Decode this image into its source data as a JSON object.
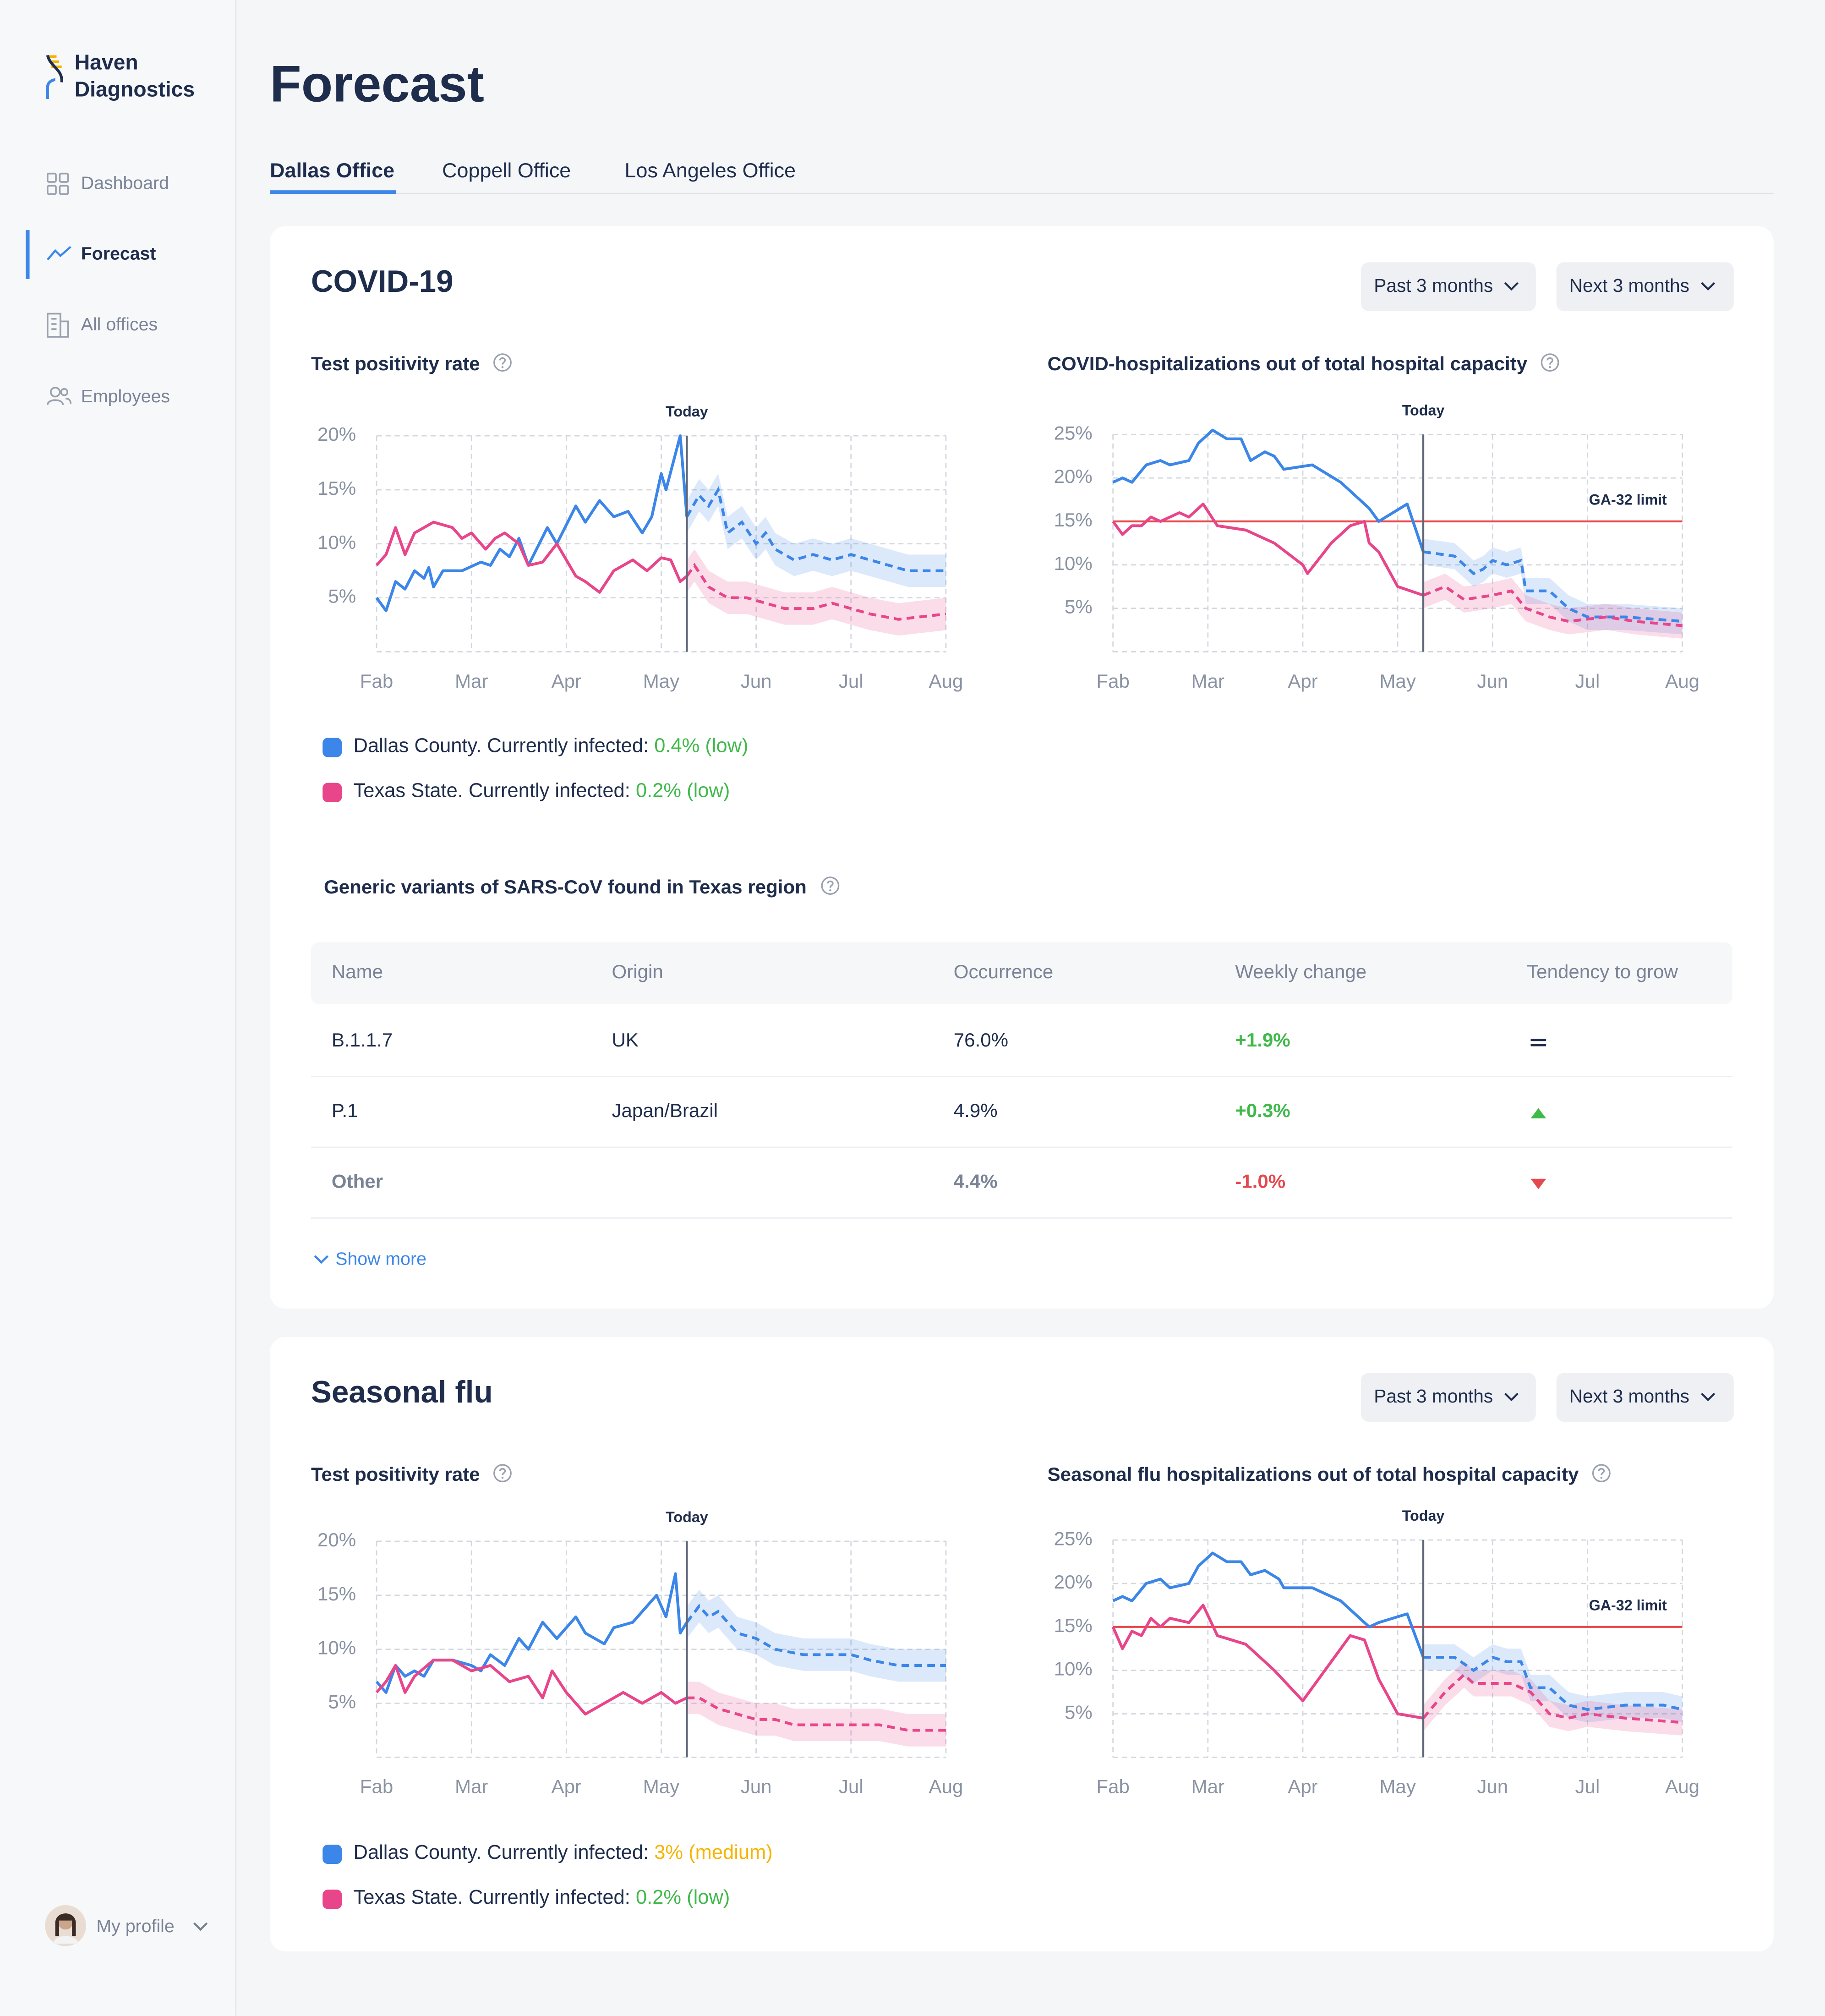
{
  "sidebar": {
    "brand": [
      "Haven",
      "Diagnostics"
    ],
    "nav": [
      "Dashboard",
      "Forecast",
      "All offices",
      "Employees"
    ],
    "active": 1,
    "profile": "My profile"
  },
  "header": {
    "title": "Forecast"
  },
  "tabs": {
    "items": [
      "Dallas Office",
      "Coppell Office",
      "Los Angeles Office"
    ],
    "active": 0
  },
  "sections": [
    {
      "title": "COVID-19",
      "filters": [
        "Past 3 months",
        "Next 3 months"
      ],
      "table": {
        "title": "Generic variants of SARS-CoV found in Texas region",
        "columns": [
          "Name",
          "Origin",
          "Occurrence",
          "Weekly change",
          "Tendency to grow"
        ],
        "rows": [
          [
            "B.1.1.7",
            "UK",
            "76.0%",
            "+1.9%"
          ],
          [
            "P.1",
            "Japan/Brazil",
            "4.9%",
            "+0.3%"
          ],
          [
            "Other",
            null,
            "4.4%",
            "-1.0%"
          ]
        ],
        "tendency": [
          "flat",
          "up",
          "down"
        ]
      },
      "show_more": "Show more"
    },
    {
      "title": "Seasonal flu",
      "filters": [
        "Past 3 months",
        "Next 3 months"
      ]
    }
  ],
  "chart_data": [
    {
      "type": "line",
      "title": "Test positivity rate",
      "xlim": [
        0,
        6
      ],
      "xticks": [
        {
          "value": 0,
          "label": "Fab"
        },
        {
          "value": 1,
          "label": "Mar"
        },
        {
          "value": 2,
          "label": "Apr"
        },
        {
          "value": 3,
          "label": "May"
        },
        {
          "value": 4,
          "label": "Jun"
        },
        {
          "value": 5,
          "label": "Jul"
        },
        {
          "value": 6,
          "label": "Aug"
        }
      ],
      "ylim": [
        0,
        20
      ],
      "yticks": [
        {
          "value": 5,
          "label": "5%"
        },
        {
          "value": 10,
          "label": "10%"
        },
        {
          "value": 15,
          "label": "15%"
        },
        {
          "value": 20,
          "label": "20%"
        }
      ],
      "grid": true,
      "today": {
        "label": "Today",
        "x": 3.27
      },
      "band": 1.5,
      "series": [
        {
          "name": "Dallas County. Currently infected:",
          "status": "0.4% (low)",
          "status_color": "#40b94b",
          "color": "#3b86e8",
          "x": [
            0,
            0.1,
            0.2,
            0.3,
            0.4,
            0.5,
            0.55,
            0.6,
            0.7,
            0.9,
            1.1,
            1.2,
            1.3,
            1.4,
            1.5,
            1.6,
            1.8,
            1.9,
            2.1,
            2.2,
            2.35,
            2.5,
            2.65,
            2.8,
            2.9,
            3.0,
            3.05,
            3.2,
            3.27
          ],
          "values": [
            5,
            3.8,
            6.5,
            5.8,
            7.5,
            6.8,
            7.8,
            6,
            7.5,
            7.5,
            8.3,
            8,
            9.5,
            8.8,
            10.5,
            8,
            11.5,
            10,
            13.5,
            12,
            14,
            12.5,
            13,
            11,
            12.5,
            16.5,
            15,
            20,
            12.5
          ],
          "forecast_x": [
            3.27,
            3.4,
            3.5,
            3.6,
            3.7,
            3.85,
            4.0,
            4.1,
            4.2,
            4.4,
            4.6,
            4.8,
            5.0,
            5.2,
            5.4,
            5.6,
            6.0
          ],
          "forecast": [
            12.5,
            14.5,
            13.5,
            15,
            11,
            12,
            10,
            11,
            9.5,
            8.5,
            9,
            8.5,
            9,
            8.5,
            8,
            7.5,
            7.5
          ]
        },
        {
          "name": "Texas State. Currently infected:",
          "status": "0.2% (low)",
          "status_color": "#40b94b",
          "color": "#e8458b",
          "x": [
            0,
            0.1,
            0.2,
            0.3,
            0.4,
            0.6,
            0.8,
            0.9,
            1.0,
            1.15,
            1.25,
            1.35,
            1.5,
            1.6,
            1.75,
            1.9,
            2.1,
            2.2,
            2.35,
            2.5,
            2.7,
            2.85,
            3.0,
            3.1,
            3.2,
            3.27
          ],
          "values": [
            8,
            9,
            11.5,
            9,
            11,
            12,
            11.5,
            10.5,
            11,
            9.5,
            10.5,
            11,
            10,
            8,
            8.3,
            10,
            7,
            6.5,
            5.5,
            7.5,
            8.5,
            7.5,
            8.7,
            8.5,
            6.5,
            7
          ],
          "forecast_x": [
            3.27,
            3.35,
            3.5,
            3.7,
            3.9,
            4.1,
            4.3,
            4.6,
            4.8,
            5.0,
            5.2,
            5.5,
            6.0
          ],
          "forecast": [
            7,
            8,
            6,
            5,
            5,
            4.5,
            4,
            4,
            4.5,
            4,
            3.5,
            3,
            3.5
          ]
        }
      ]
    },
    {
      "type": "line",
      "title": "COVID-hospitalizations out of total hospital capacity",
      "xlim": [
        0,
        6
      ],
      "xticks": [
        {
          "value": 0,
          "label": "Fab"
        },
        {
          "value": 1,
          "label": "Mar"
        },
        {
          "value": 2,
          "label": "Apr"
        },
        {
          "value": 3,
          "label": "May"
        },
        {
          "value": 4,
          "label": "Jun"
        },
        {
          "value": 5,
          "label": "Jul"
        },
        {
          "value": 6,
          "label": "Aug"
        }
      ],
      "ylim": [
        0,
        25
      ],
      "yticks": [
        {
          "value": 5,
          "label": "5%"
        },
        {
          "value": 10,
          "label": "10%"
        },
        {
          "value": 15,
          "label": "15%"
        },
        {
          "value": 20,
          "label": "20%"
        },
        {
          "value": 25,
          "label": "25%"
        }
      ],
      "grid": true,
      "today": {
        "label": "Today",
        "x": 3.27
      },
      "limit": {
        "label": "GA-32 limit",
        "value": 15,
        "color": "#e8474a"
      },
      "band": 1.5,
      "series": [
        {
          "color": "#3b86e8",
          "x": [
            0,
            0.1,
            0.2,
            0.35,
            0.5,
            0.6,
            0.8,
            0.9,
            1.05,
            1.2,
            1.35,
            1.45,
            1.6,
            1.7,
            1.8,
            2.1,
            2.4,
            2.7,
            2.8,
            3.1,
            3.27
          ],
          "values": [
            19.5,
            20,
            19.5,
            21.5,
            22,
            21.5,
            22,
            24,
            25.5,
            24.5,
            24.5,
            22,
            23,
            22.5,
            21,
            21.5,
            19.5,
            16.5,
            15,
            17,
            11.5
          ],
          "forecast_x": [
            3.27,
            3.6,
            3.8,
            3.9,
            4.0,
            4.15,
            4.3,
            4.35,
            4.6,
            4.8,
            5.0,
            5.4,
            6.0
          ],
          "forecast": [
            11.5,
            11,
            9,
            9.5,
            10.5,
            10,
            10.5,
            7,
            7,
            5,
            4,
            4,
            3.5
          ]
        },
        {
          "color": "#e8458b",
          "x": [
            0,
            0.1,
            0.2,
            0.3,
            0.4,
            0.5,
            0.7,
            0.8,
            0.95,
            1.1,
            1.4,
            1.7,
            2.0,
            2.05,
            2.3,
            2.5,
            2.65,
            2.7,
            2.8,
            3.0,
            3.27
          ],
          "values": [
            15,
            13.5,
            14.5,
            14.5,
            15.5,
            15,
            16,
            15.5,
            17,
            14.5,
            14,
            12.5,
            10,
            9,
            12.5,
            14.5,
            15,
            12.5,
            11.5,
            7.5,
            6.5
          ],
          "forecast_x": [
            3.27,
            3.5,
            3.7,
            4.0,
            4.2,
            4.35,
            4.6,
            4.8,
            5.2,
            5.5,
            6.0
          ],
          "forecast": [
            6.5,
            7.5,
            6,
            6.5,
            7,
            5,
            4,
            3.5,
            4,
            3.5,
            3
          ]
        }
      ]
    },
    {
      "type": "line",
      "title": "Test positivity rate",
      "xlim": [
        0,
        6
      ],
      "xticks": [
        {
          "value": 0,
          "label": "Fab"
        },
        {
          "value": 1,
          "label": "Mar"
        },
        {
          "value": 2,
          "label": "Apr"
        },
        {
          "value": 3,
          "label": "May"
        },
        {
          "value": 4,
          "label": "Jun"
        },
        {
          "value": 5,
          "label": "Jul"
        },
        {
          "value": 6,
          "label": "Aug"
        }
      ],
      "ylim": [
        0,
        20
      ],
      "yticks": [
        {
          "value": 5,
          "label": "5%"
        },
        {
          "value": 10,
          "label": "10%"
        },
        {
          "value": 15,
          "label": "15%"
        },
        {
          "value": 20,
          "label": "20%"
        }
      ],
      "grid": true,
      "today": {
        "label": "Today",
        "x": 3.27
      },
      "band": 1.5,
      "series": [
        {
          "name": "Dallas County. Currently infected:",
          "status": "3% (medium)",
          "status_color": "#f5b400",
          "color": "#3b86e8",
          "x": [
            0,
            0.1,
            0.2,
            0.3,
            0.4,
            0.5,
            0.6,
            0.8,
            1.0,
            1.1,
            1.2,
            1.35,
            1.5,
            1.6,
            1.75,
            1.9,
            2.1,
            2.2,
            2.4,
            2.5,
            2.7,
            2.95,
            3.05,
            3.15,
            3.2,
            3.27
          ],
          "values": [
            7,
            6,
            8.5,
            7.5,
            8,
            7.5,
            9,
            9,
            8.5,
            8,
            9.5,
            8.5,
            11,
            10,
            12.5,
            11,
            13,
            11.5,
            10.5,
            12,
            12.5,
            15,
            13,
            17,
            11.5,
            12.5
          ],
          "forecast_x": [
            3.27,
            3.4,
            3.5,
            3.6,
            3.8,
            4.0,
            4.2,
            4.5,
            4.8,
            5.0,
            5.2,
            5.5,
            6.0
          ],
          "forecast": [
            12.5,
            14,
            13,
            13.5,
            11.5,
            11,
            10,
            9.5,
            9.5,
            9.5,
            9,
            8.5,
            8.5
          ]
        },
        {
          "name": "Texas State. Currently infected:",
          "status": "0.2% (low)",
          "status_color": "#40b94b",
          "color": "#e8458b",
          "x": [
            0,
            0.1,
            0.2,
            0.3,
            0.4,
            0.6,
            0.8,
            1.0,
            1.2,
            1.4,
            1.6,
            1.75,
            1.85,
            2.0,
            2.2,
            2.4,
            2.6,
            2.8,
            3.0,
            3.15,
            3.27
          ],
          "values": [
            6,
            7,
            8.5,
            6,
            7.5,
            9,
            9,
            8,
            8.5,
            7,
            7.5,
            5.5,
            8,
            6,
            4,
            5,
            6,
            5,
            6,
            5,
            5.5
          ],
          "forecast_x": [
            3.27,
            3.4,
            3.6,
            3.8,
            4.0,
            4.2,
            4.4,
            4.7,
            5.0,
            5.3,
            5.6,
            6.0
          ],
          "forecast": [
            5.5,
            5.5,
            4.5,
            4,
            3.5,
            3.5,
            3,
            3,
            3,
            3,
            2.5,
            2.5
          ]
        }
      ]
    },
    {
      "type": "line",
      "title": "Seasonal flu hospitalizations out of total hospital capacity",
      "xlim": [
        0,
        6
      ],
      "xticks": [
        {
          "value": 0,
          "label": "Fab"
        },
        {
          "value": 1,
          "label": "Mar"
        },
        {
          "value": 2,
          "label": "Apr"
        },
        {
          "value": 3,
          "label": "May"
        },
        {
          "value": 4,
          "label": "Jun"
        },
        {
          "value": 5,
          "label": "Jul"
        },
        {
          "value": 6,
          "label": "Aug"
        }
      ],
      "ylim": [
        0,
        25
      ],
      "yticks": [
        {
          "value": 5,
          "label": "5%"
        },
        {
          "value": 10,
          "label": "10%"
        },
        {
          "value": 15,
          "label": "15%"
        },
        {
          "value": 20,
          "label": "20%"
        },
        {
          "value": 25,
          "label": "25%"
        }
      ],
      "grid": true,
      "today": {
        "label": "Today",
        "x": 3.27
      },
      "limit": {
        "label": "GA-32 limit",
        "value": 15,
        "color": "#e8474a"
      },
      "band": 1.5,
      "series": [
        {
          "color": "#3b86e8",
          "x": [
            0,
            0.1,
            0.2,
            0.35,
            0.5,
            0.6,
            0.8,
            0.9,
            1.05,
            1.2,
            1.35,
            1.45,
            1.6,
            1.75,
            1.8,
            2.1,
            2.4,
            2.7,
            2.8,
            3.1,
            3.27
          ],
          "values": [
            18,
            18.5,
            18,
            20,
            20.5,
            19.5,
            20,
            22,
            23.5,
            22.5,
            22.5,
            21,
            21.5,
            20.5,
            19.5,
            19.5,
            18,
            15,
            15.5,
            16.5,
            11.5
          ],
          "forecast_x": [
            3.27,
            3.6,
            3.8,
            4.0,
            4.15,
            4.3,
            4.4,
            4.6,
            4.8,
            5.0,
            5.4,
            5.8,
            6.0
          ],
          "forecast": [
            11.5,
            11.5,
            10,
            11.5,
            11,
            11,
            8,
            8,
            6,
            5.5,
            6,
            6,
            5.5
          ]
        },
        {
          "color": "#e8458b",
          "x": [
            0,
            0.1,
            0.2,
            0.3,
            0.4,
            0.5,
            0.6,
            0.8,
            0.95,
            1.1,
            1.4,
            1.7,
            2.0,
            2.3,
            2.5,
            2.65,
            2.8,
            3.0,
            3.27
          ],
          "values": [
            15,
            12.5,
            14.5,
            14,
            16,
            15,
            16,
            15.5,
            17.5,
            14,
            13,
            10,
            6.5,
            11,
            14,
            13.5,
            9,
            5,
            4.5
          ],
          "forecast_x": [
            3.27,
            3.5,
            3.7,
            3.8,
            4.0,
            4.2,
            4.4,
            4.6,
            4.8,
            5.0,
            5.4,
            6.0
          ],
          "forecast": [
            4.5,
            7.5,
            9.5,
            8.5,
            8.5,
            8.5,
            7.5,
            5,
            4.5,
            5,
            4.5,
            4
          ]
        }
      ]
    }
  ]
}
